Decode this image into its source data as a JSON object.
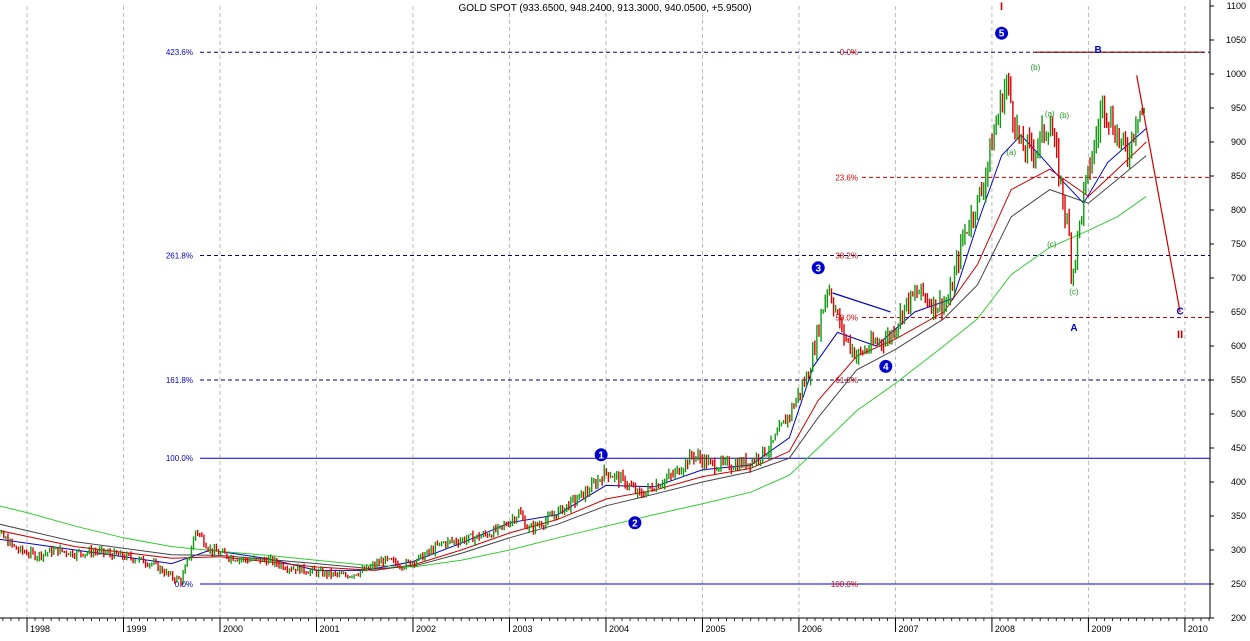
{
  "chart_data": {
    "type": "line",
    "title": "GOLD SPOT (933.6500, 948.2400, 913.3000, 940.0500, +5.9500)",
    "ylim": [
      200,
      1100
    ],
    "y_ticks": [
      200,
      250,
      300,
      350,
      400,
      450,
      500,
      550,
      600,
      650,
      700,
      750,
      800,
      850,
      900,
      950,
      1000,
      1050,
      1100
    ],
    "x_year_labels": [
      "1998",
      "1999",
      "2000",
      "2001",
      "2002",
      "2003",
      "2004",
      "2005",
      "2006",
      "2007",
      "2008",
      "2009",
      "2010"
    ],
    "grid": "vertical dashed at year boundaries",
    "price_points": [
      [
        1997.5,
        310
      ],
      [
        1997.7,
        325
      ],
      [
        1997.9,
        300
      ],
      [
        1998.1,
        292
      ],
      [
        1998.3,
        300
      ],
      [
        1998.5,
        295
      ],
      [
        1998.7,
        298
      ],
      [
        1998.9,
        293
      ],
      [
        1999.1,
        288
      ],
      [
        1999.3,
        280
      ],
      [
        1999.5,
        260
      ],
      [
        1999.6,
        255
      ],
      [
        1999.7,
        300
      ],
      [
        1999.75,
        330
      ],
      [
        1999.9,
        300
      ],
      [
        2000.1,
        290
      ],
      [
        2000.3,
        285
      ],
      [
        2000.5,
        285
      ],
      [
        2000.7,
        275
      ],
      [
        2000.9,
        270
      ],
      [
        2001.1,
        265
      ],
      [
        2001.3,
        262
      ],
      [
        2001.5,
        270
      ],
      [
        2001.7,
        285
      ],
      [
        2001.9,
        278
      ],
      [
        2002.1,
        290
      ],
      [
        2002.3,
        310
      ],
      [
        2002.5,
        315
      ],
      [
        2002.7,
        320
      ],
      [
        2002.9,
        330
      ],
      [
        2003.1,
        355
      ],
      [
        2003.2,
        330
      ],
      [
        2003.4,
        345
      ],
      [
        2003.6,
        365
      ],
      [
        2003.8,
        385
      ],
      [
        2004.0,
        415
      ],
      [
        2004.2,
        400
      ],
      [
        2004.35,
        380
      ],
      [
        2004.5,
        395
      ],
      [
        2004.7,
        410
      ],
      [
        2004.9,
        440
      ],
      [
        2005.1,
        425
      ],
      [
        2005.3,
        425
      ],
      [
        2005.5,
        430
      ],
      [
        2005.7,
        450
      ],
      [
        2005.9,
        500
      ],
      [
        2006.1,
        560
      ],
      [
        2006.3,
        690
      ],
      [
        2006.45,
        620
      ],
      [
        2006.6,
        585
      ],
      [
        2006.8,
        605
      ],
      [
        2006.95,
        615
      ],
      [
        2007.1,
        660
      ],
      [
        2007.25,
        680
      ],
      [
        2007.4,
        660
      ],
      [
        2007.55,
        665
      ],
      [
        2007.7,
        760
      ],
      [
        2007.9,
        830
      ],
      [
        2008.0,
        900
      ],
      [
        2008.15,
        990
      ],
      [
        2008.3,
        890
      ],
      [
        2008.45,
        890
      ],
      [
        2008.6,
        930
      ],
      [
        2008.7,
        850
      ],
      [
        2008.8,
        760
      ],
      [
        2008.83,
        700
      ],
      [
        2008.95,
        820
      ],
      [
        2009.1,
        920
      ],
      [
        2009.15,
        960
      ],
      [
        2009.3,
        910
      ],
      [
        2009.4,
        880
      ],
      [
        2009.52,
        950
      ],
      [
        2009.6,
        938
      ]
    ],
    "series": [
      {
        "name": "",
        "color": "#0000cc",
        "values": [
          [
            1997.5,
            320
          ],
          [
            1998.5,
            300
          ],
          [
            1999.5,
            280
          ],
          [
            1999.9,
            300
          ],
          [
            2000.5,
            287
          ],
          [
            2001.0,
            270
          ],
          [
            2001.5,
            270
          ],
          [
            2002.0,
            283
          ],
          [
            2002.5,
            310
          ],
          [
            2003.0,
            340
          ],
          [
            2003.5,
            352
          ],
          [
            2004.0,
            395
          ],
          [
            2004.5,
            393
          ],
          [
            2005.0,
            418
          ],
          [
            2005.5,
            425
          ],
          [
            2005.9,
            465
          ],
          [
            2006.15,
            570
          ],
          [
            2006.4,
            620
          ],
          [
            2006.8,
            600
          ],
          [
            2007.2,
            650
          ],
          [
            2007.6,
            670
          ],
          [
            2007.85,
            780
          ],
          [
            2008.1,
            880
          ],
          [
            2008.3,
            910
          ],
          [
            2008.5,
            880
          ],
          [
            2008.75,
            840
          ],
          [
            2008.95,
            810
          ],
          [
            2009.2,
            870
          ],
          [
            2009.6,
            920
          ]
        ]
      },
      {
        "name": "",
        "color": "#cc0000",
        "values": [
          [
            1997.5,
            335
          ],
          [
            1998.5,
            305
          ],
          [
            1999.5,
            288
          ],
          [
            2000.0,
            290
          ],
          [
            2001.0,
            275
          ],
          [
            2001.6,
            270
          ],
          [
            2002.0,
            278
          ],
          [
            2002.5,
            300
          ],
          [
            2003.0,
            325
          ],
          [
            2003.5,
            345
          ],
          [
            2004.0,
            375
          ],
          [
            2004.5,
            388
          ],
          [
            2005.0,
            408
          ],
          [
            2005.5,
            420
          ],
          [
            2005.9,
            445
          ],
          [
            2006.2,
            520
          ],
          [
            2006.6,
            585
          ],
          [
            2007.0,
            610
          ],
          [
            2007.5,
            650
          ],
          [
            2007.85,
            720
          ],
          [
            2008.2,
            830
          ],
          [
            2008.6,
            860
          ],
          [
            2009.0,
            820
          ],
          [
            2009.3,
            860
          ],
          [
            2009.6,
            900
          ]
        ]
      },
      {
        "name": "",
        "color": "#444444",
        "values": [
          [
            1997.5,
            345
          ],
          [
            1998.5,
            312
          ],
          [
            1999.5,
            293
          ],
          [
            2000.0,
            292
          ],
          [
            2001.0,
            280
          ],
          [
            2001.6,
            272
          ],
          [
            2002.0,
            276
          ],
          [
            2002.5,
            295
          ],
          [
            2003.0,
            318
          ],
          [
            2003.5,
            338
          ],
          [
            2004.0,
            365
          ],
          [
            2004.5,
            382
          ],
          [
            2005.0,
            400
          ],
          [
            2005.5,
            415
          ],
          [
            2005.9,
            435
          ],
          [
            2006.2,
            495
          ],
          [
            2006.6,
            565
          ],
          [
            2007.0,
            595
          ],
          [
            2007.5,
            640
          ],
          [
            2007.85,
            690
          ],
          [
            2008.2,
            790
          ],
          [
            2008.6,
            830
          ],
          [
            2009.0,
            810
          ],
          [
            2009.3,
            845
          ],
          [
            2009.6,
            880
          ]
        ]
      },
      {
        "name": "",
        "color": "#33cc33",
        "values": [
          [
            1997.5,
            372
          ],
          [
            1998.0,
            355
          ],
          [
            1998.5,
            335
          ],
          [
            1999.0,
            318
          ],
          [
            1999.5,
            305
          ],
          [
            2000.0,
            298
          ],
          [
            2000.5,
            292
          ],
          [
            2001.0,
            285
          ],
          [
            2001.5,
            278
          ],
          [
            2002.0,
            275
          ],
          [
            2002.5,
            285
          ],
          [
            2003.0,
            300
          ],
          [
            2003.5,
            318
          ],
          [
            2004.0,
            335
          ],
          [
            2004.5,
            352
          ],
          [
            2005.0,
            368
          ],
          [
            2005.5,
            385
          ],
          [
            2005.9,
            410
          ],
          [
            2006.2,
            450
          ],
          [
            2006.6,
            505
          ],
          [
            2007.0,
            545
          ],
          [
            2007.5,
            600
          ],
          [
            2007.85,
            640
          ],
          [
            2008.2,
            705
          ],
          [
            2008.6,
            745
          ],
          [
            2009.0,
            770
          ],
          [
            2009.3,
            790
          ],
          [
            2009.6,
            820
          ]
        ]
      }
    ],
    "fib_extension_levels": [
      {
        "label": "423.6%",
        "value": 1032,
        "color": "#000080"
      },
      {
        "label": "261.8%",
        "value": 733,
        "color": "#000080"
      },
      {
        "label": "161.8%",
        "value": 550,
        "color": "#000080"
      },
      {
        "label": "100.0%",
        "value": 435,
        "color": "#0000cc",
        "solid": true
      },
      {
        "label": "0.0%",
        "value": 250,
        "color": "#0000cc",
        "solid": true
      }
    ],
    "fib_retracement_levels": [
      {
        "label": "0.0%",
        "value": 1032
      },
      {
        "label": "23.6%",
        "value": 848
      },
      {
        "label": "38.2%",
        "value": 733
      },
      {
        "label": "50.0%",
        "value": 642
      },
      {
        "label": "61.8%",
        "value": 550
      },
      {
        "label": "100.0%",
        "value": 250
      }
    ],
    "wave_labels": {
      "circled": [
        {
          "text": "1",
          "x": 2003.95,
          "y": 440
        },
        {
          "text": "2",
          "x": 2004.3,
          "y": 340
        },
        {
          "text": "3",
          "x": 2006.2,
          "y": 715
        },
        {
          "text": "4",
          "x": 2006.9,
          "y": 570
        },
        {
          "text": "5",
          "x": 2008.1,
          "y": 1060
        }
      ],
      "red": [
        {
          "text": "I",
          "x": 2008.1,
          "y": 1100
        },
        {
          "text": "II",
          "x": 2009.95,
          "y": 618
        }
      ],
      "blue": [
        {
          "text": "B",
          "x": 2009.1,
          "y": 1037
        },
        {
          "text": "A",
          "x": 2008.85,
          "y": 628
        },
        {
          "text": "C",
          "x": 2009.95,
          "y": 652
        }
      ],
      "green": [
        {
          "text": "(b)",
          "x": 2008.45,
          "y": 1010
        },
        {
          "text": "(a)",
          "x": 2008.2,
          "y": 885
        },
        {
          "text": "(a)",
          "x": 2008.6,
          "y": 942
        },
        {
          "text": "(b)",
          "x": 2008.75,
          "y": 940
        },
        {
          "text": "(c)",
          "x": 2008.62,
          "y": 750
        },
        {
          "text": "(c)",
          "x": 2008.85,
          "y": 680
        }
      ]
    },
    "annotation_lines": [
      {
        "color": "#cc0000",
        "points": [
          [
            2009.5,
            998
          ],
          [
            2009.95,
            650
          ]
        ]
      },
      {
        "color": "#0000cc",
        "points": [
          [
            2006.35,
            678
          ],
          [
            2006.95,
            650
          ]
        ]
      },
      {
        "color": "#880000",
        "points": [
          [
            2008.45,
            1032
          ],
          [
            2010.2,
            1032
          ]
        ]
      }
    ]
  }
}
